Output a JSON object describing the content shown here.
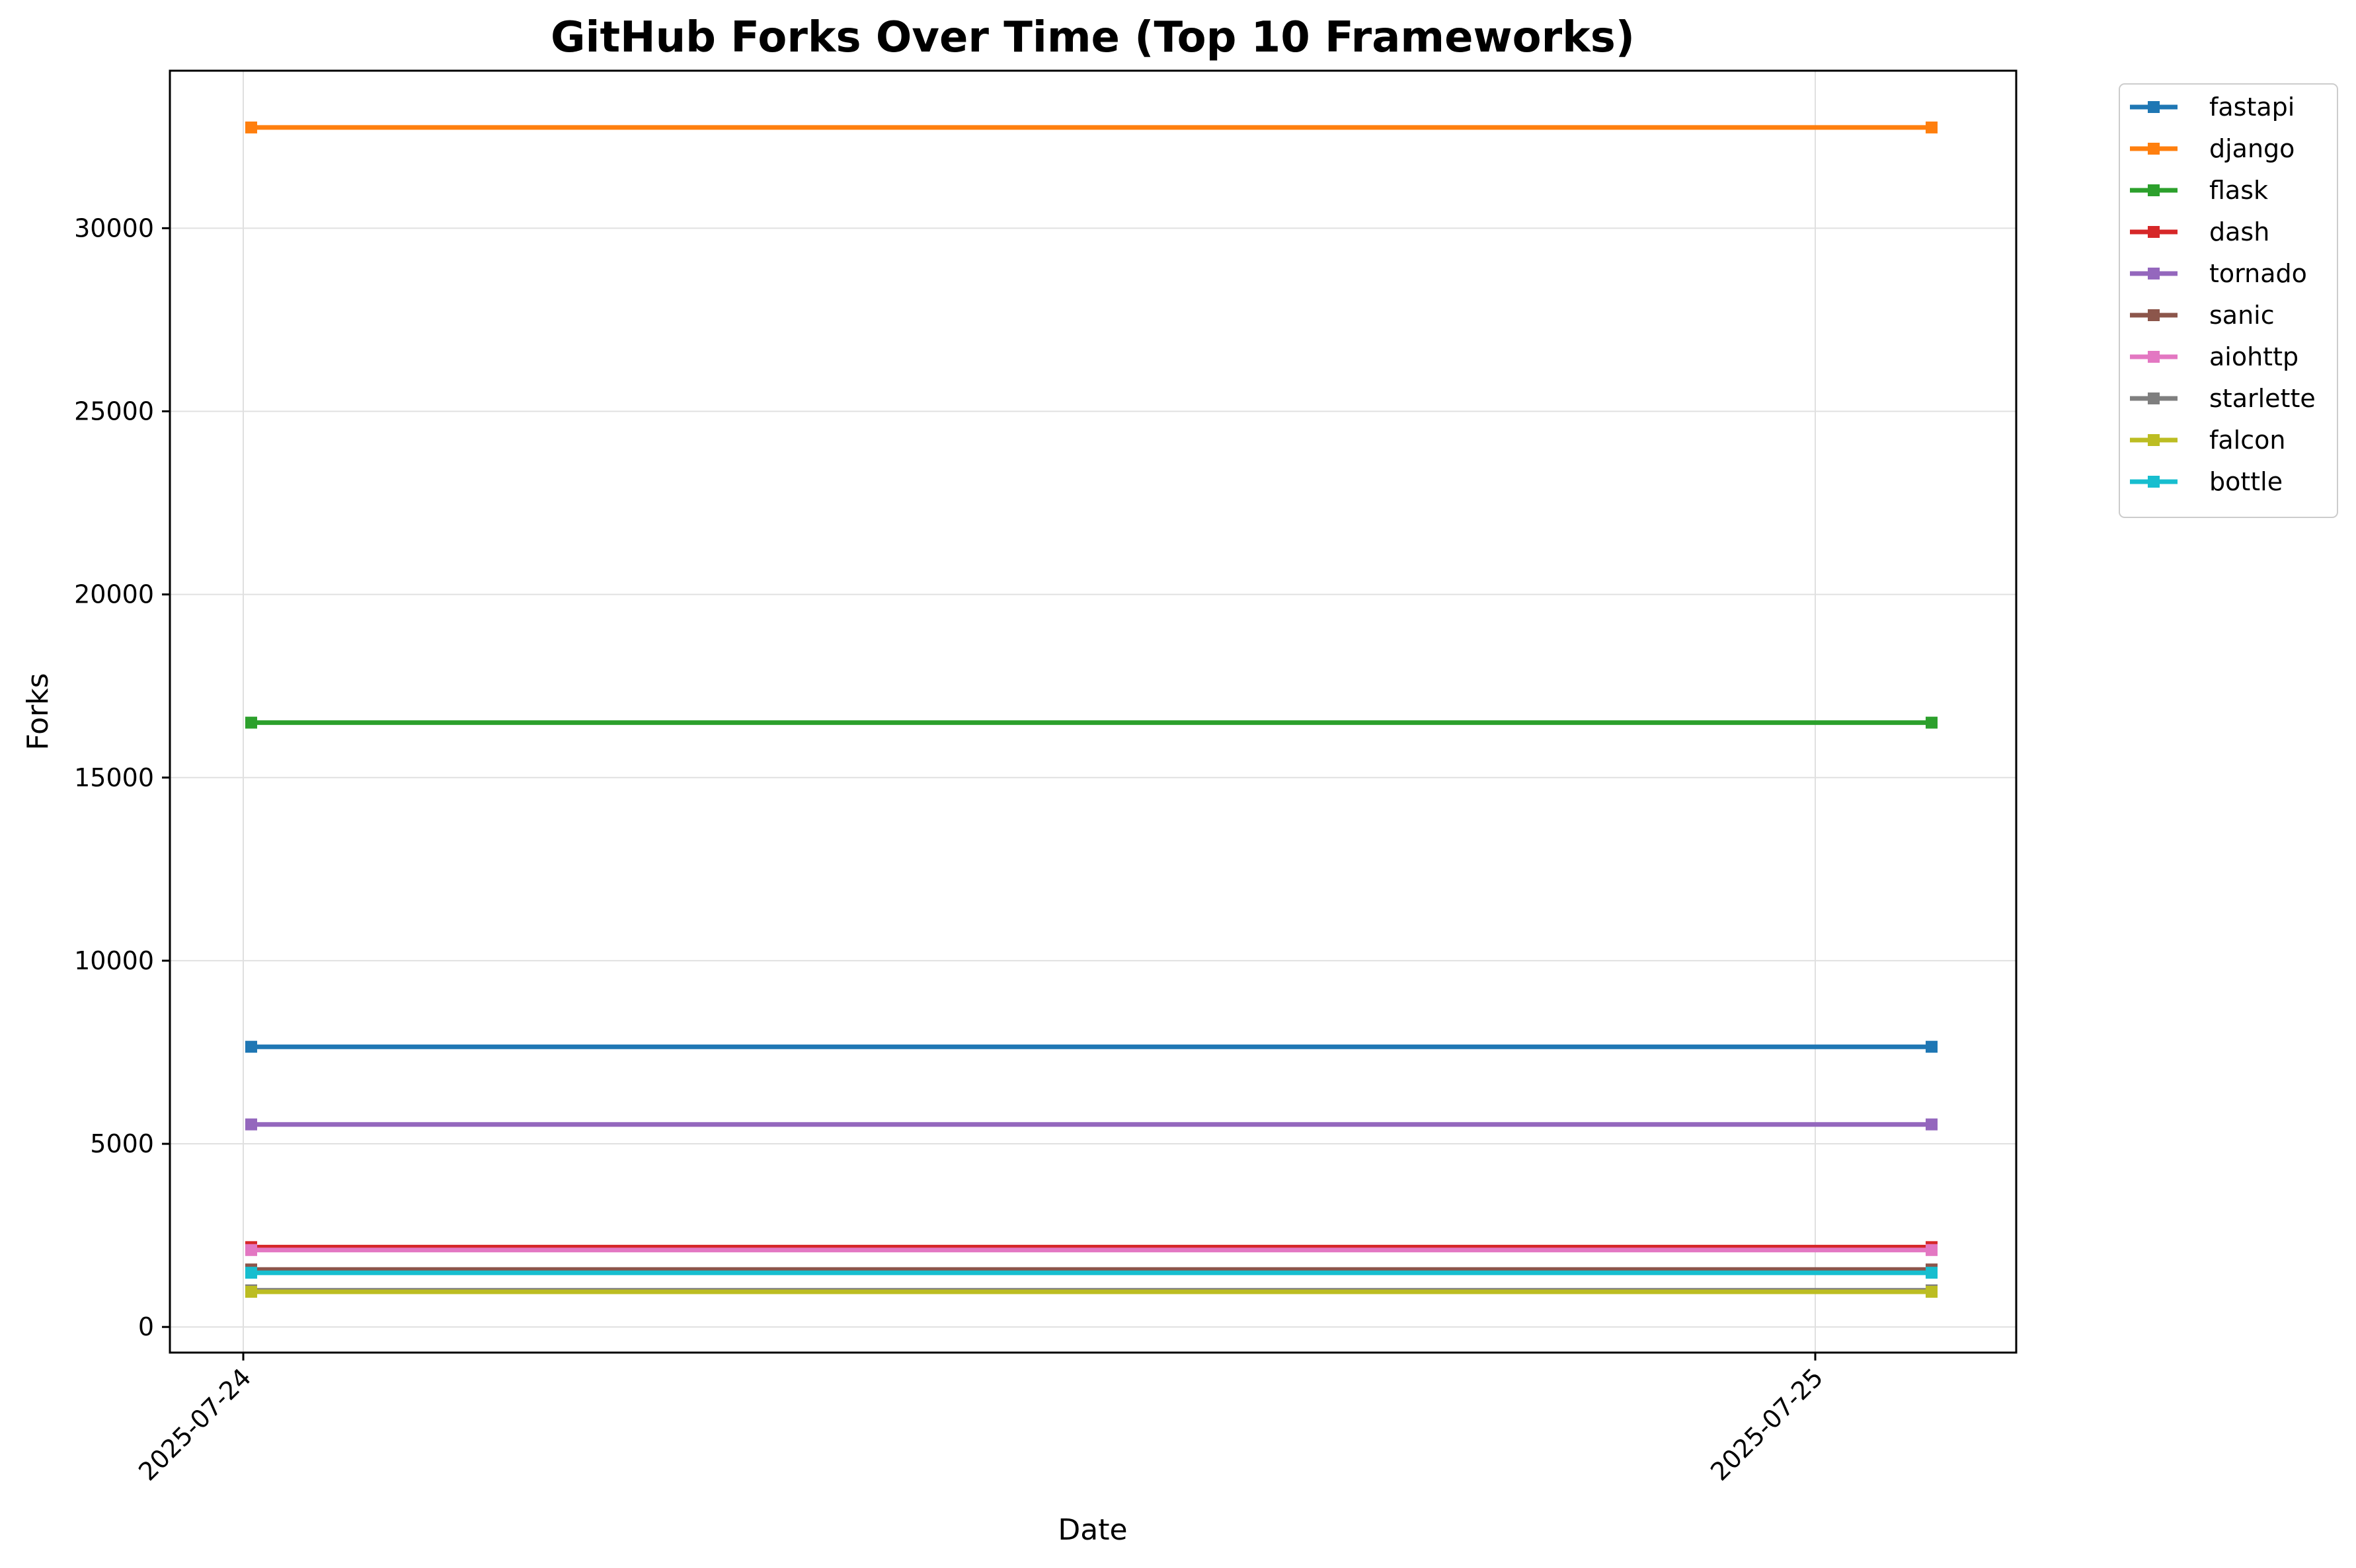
{
  "chart_data": {
    "type": "line",
    "title": "GitHub Forks Over Time (Top 10 Frameworks)",
    "xlabel": "Date",
    "ylabel": "Forks",
    "x": [
      "2025-07-24",
      "2025-07-25"
    ],
    "x_ticks": [
      "2025-07-24",
      "2025-07-25"
    ],
    "y_ticks": [
      0,
      5000,
      10000,
      15000,
      20000,
      25000,
      30000
    ],
    "ylim": [
      -700,
      34300
    ],
    "grid": true,
    "legend_position": "outside-top-right",
    "marker": "square",
    "series": [
      {
        "name": "fastapi",
        "color": "#1f77b4",
        "values": [
          7650,
          7650
        ]
      },
      {
        "name": "django",
        "color": "#ff7f0e",
        "values": [
          32750,
          32750
        ]
      },
      {
        "name": "flask",
        "color": "#2ca02c",
        "values": [
          16500,
          16500
        ]
      },
      {
        "name": "dash",
        "color": "#d62728",
        "values": [
          2180,
          2180
        ]
      },
      {
        "name": "tornado",
        "color": "#9467bd",
        "values": [
          5530,
          5530
        ]
      },
      {
        "name": "sanic",
        "color": "#8c564b",
        "values": [
          1570,
          1570
        ]
      },
      {
        "name": "aiohttp",
        "color": "#e377c2",
        "values": [
          2100,
          2100
        ]
      },
      {
        "name": "starlette",
        "color": "#7f7f7f",
        "values": [
          1000,
          1000
        ]
      },
      {
        "name": "falcon",
        "color": "#bcbd22",
        "values": [
          960,
          960
        ]
      },
      {
        "name": "bottle",
        "color": "#17becf",
        "values": [
          1480,
          1480
        ]
      }
    ]
  }
}
